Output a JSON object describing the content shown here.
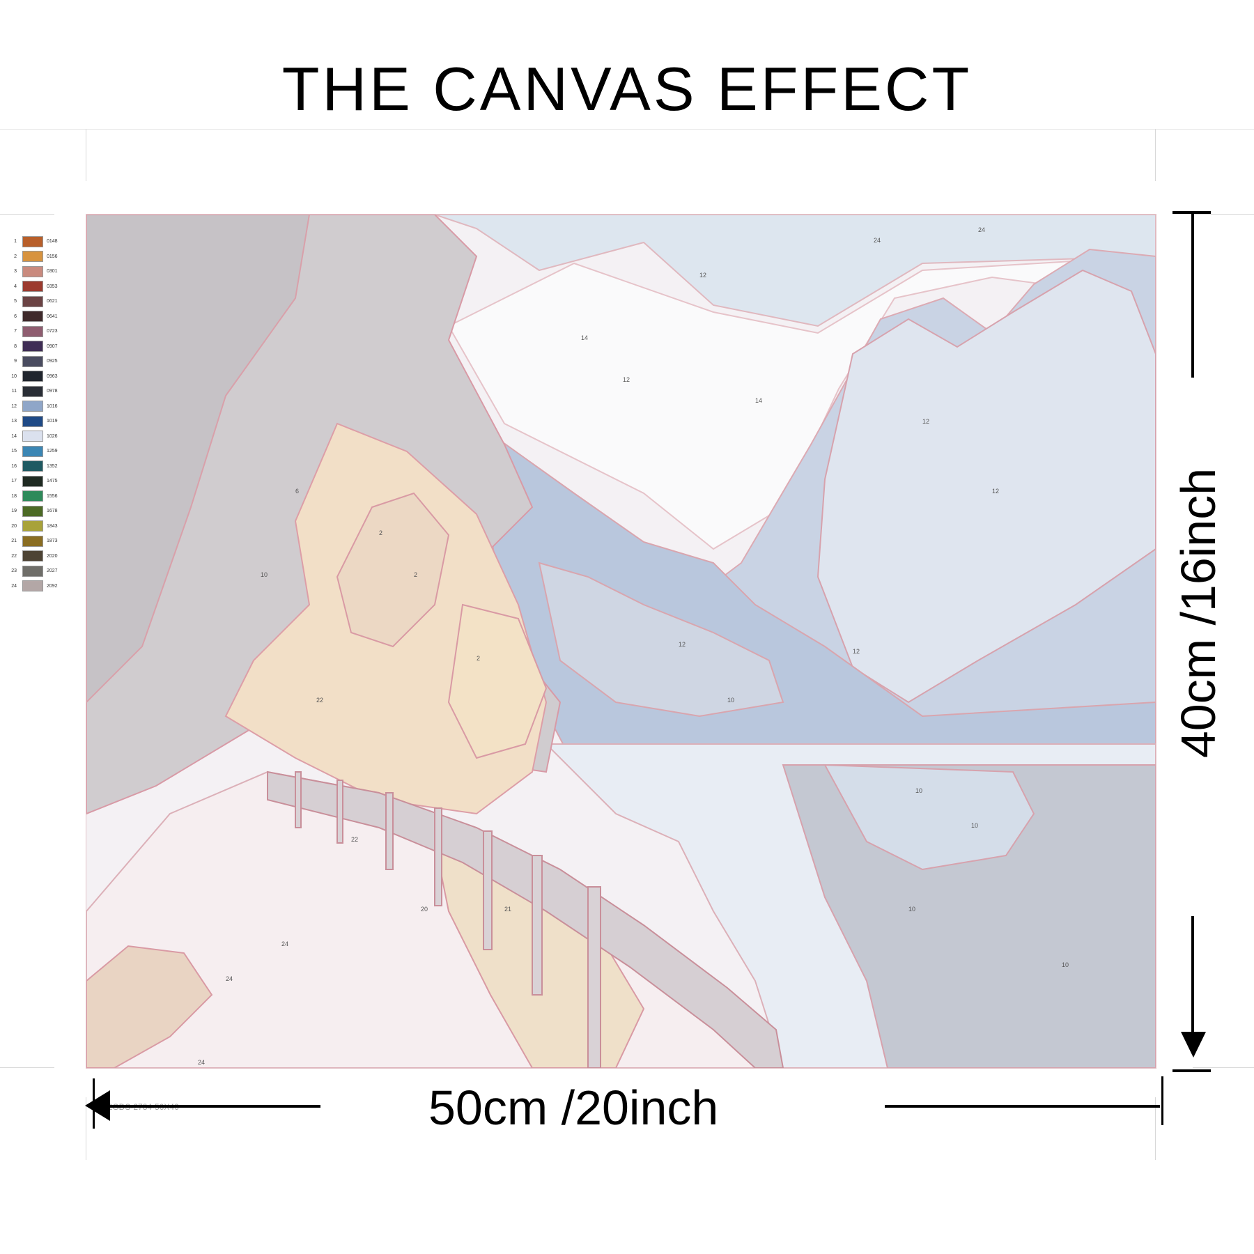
{
  "title": "THE CANVAS EFFECT",
  "dimensions": {
    "width_label": "50cm /20inch",
    "height_label": "40cm /16inch"
  },
  "print_code": "32GDS-2784-50X40",
  "legend": [
    {
      "num": "1",
      "code": "0148",
      "color": "#b85f2a"
    },
    {
      "num": "2",
      "code": "0156",
      "color": "#d7933f"
    },
    {
      "num": "3",
      "code": "0301",
      "color": "#c98a7e"
    },
    {
      "num": "4",
      "code": "0353",
      "color": "#9c3a2e"
    },
    {
      "num": "5",
      "code": "0621",
      "color": "#6b4344"
    },
    {
      "num": "6",
      "code": "0641",
      "color": "#3f2a2b"
    },
    {
      "num": "7",
      "code": "0723",
      "color": "#8f5d70"
    },
    {
      "num": "8",
      "code": "0907",
      "color": "#3f2d55"
    },
    {
      "num": "9",
      "code": "0925",
      "color": "#4a4c60"
    },
    {
      "num": "10",
      "code": "0963",
      "color": "#20252d"
    },
    {
      "num": "11",
      "code": "0978",
      "color": "#2a2e36"
    },
    {
      "num": "12",
      "code": "1016",
      "color": "#8fa6c8"
    },
    {
      "num": "13",
      "code": "1019",
      "color": "#1f4a86"
    },
    {
      "num": "14",
      "code": "1026",
      "color": "#dbe1ee"
    },
    {
      "num": "15",
      "code": "1259",
      "color": "#3b86b4"
    },
    {
      "num": "16",
      "code": "1352",
      "color": "#1f5a62"
    },
    {
      "num": "17",
      "code": "1475",
      "color": "#1f2a22"
    },
    {
      "num": "18",
      "code": "1556",
      "color": "#2e8a5a"
    },
    {
      "num": "19",
      "code": "1678",
      "color": "#4c6a25"
    },
    {
      "num": "20",
      "code": "1843",
      "color": "#a8a23a"
    },
    {
      "num": "21",
      "code": "1873",
      "color": "#8a6d22"
    },
    {
      "num": "22",
      "code": "2020",
      "color": "#4d4334"
    },
    {
      "num": "23",
      "code": "2027",
      "color": "#6f6e69"
    },
    {
      "num": "24",
      "code": "2092",
      "color": "#b3a7a6"
    }
  ]
}
